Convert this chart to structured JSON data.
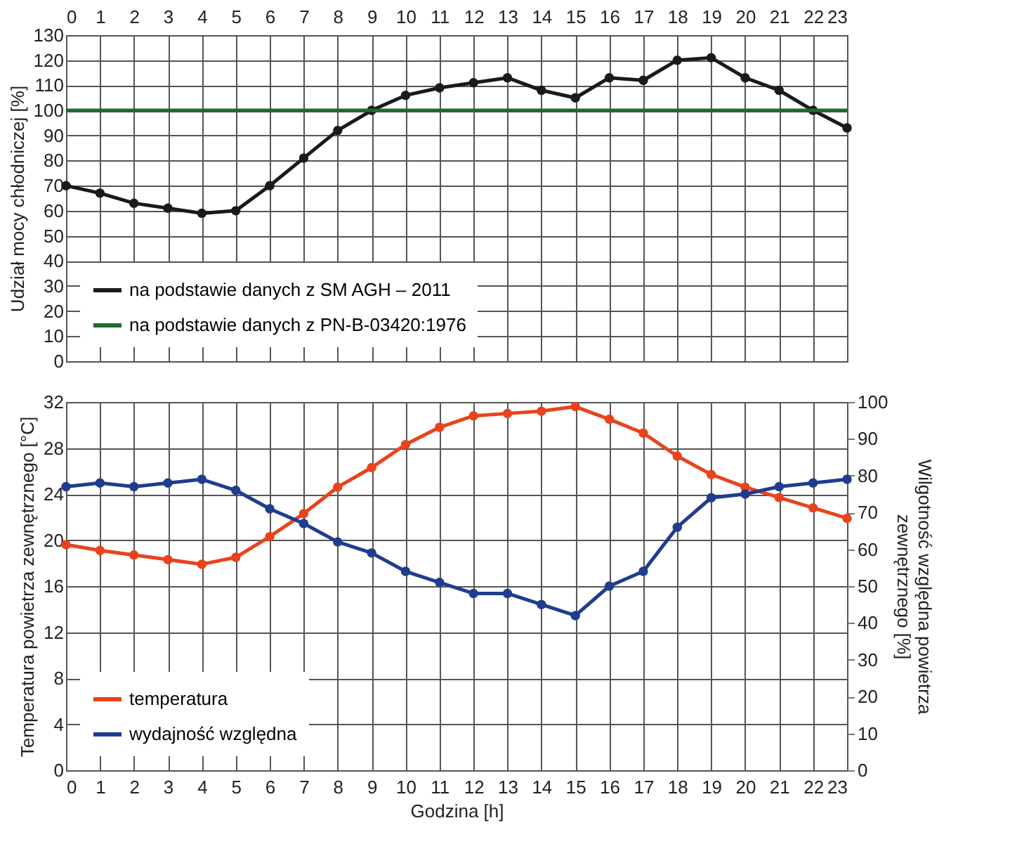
{
  "chart_data": [
    {
      "type": "line",
      "ylabel": "Udział mocy chłodniczej [%]",
      "xlim": [
        0,
        23
      ],
      "xticks": [
        0,
        1,
        2,
        3,
        4,
        5,
        6,
        7,
        8,
        9,
        10,
        11,
        12,
        13,
        14,
        15,
        16,
        17,
        18,
        19,
        20,
        21,
        22,
        23
      ],
      "ylim": [
        0,
        130
      ],
      "yticks": [
        0,
        10,
        20,
        30,
        40,
        50,
        60,
        70,
        80,
        90,
        100,
        110,
        120,
        130
      ],
      "grid": true,
      "legend": "bottom left",
      "marker": "circle",
      "line_style": "solid",
      "series": [
        {
          "name": "na podstawie danych z SM AGH – 2011",
          "color": "#1a1a1a",
          "x": [
            0,
            1,
            2,
            3,
            4,
            5,
            6,
            7,
            8,
            9,
            10,
            11,
            12,
            13,
            14,
            15,
            16,
            17,
            18,
            19,
            20,
            21,
            22,
            23
          ],
          "values": [
            70,
            67,
            63,
            61,
            59,
            60,
            70,
            81,
            92,
            100,
            106,
            109,
            111,
            113,
            108,
            105,
            113,
            112,
            120,
            121,
            113,
            108,
            100,
            93
          ]
        },
        {
          "name": "na podstawie danych z PN-B-03420:1976",
          "color": "#1e6b2e",
          "marker": "none",
          "x": [
            0,
            23
          ],
          "values": [
            100,
            100
          ]
        }
      ]
    },
    {
      "type": "line",
      "xlabel": "Godzina [h]",
      "ylabel": "Temperatura powietrza zewnętrznego [°C]",
      "y2label": "Wilgotność względna powietrza zewnętrznego [%]",
      "xlim": [
        0,
        23
      ],
      "xticks": [
        0,
        1,
        2,
        3,
        4,
        5,
        6,
        7,
        8,
        9,
        10,
        11,
        12,
        13,
        14,
        15,
        16,
        17,
        18,
        19,
        20,
        21,
        22,
        23
      ],
      "ylim": [
        0,
        32
      ],
      "yticks": [
        0,
        4,
        8,
        12,
        16,
        20,
        24,
        28,
        32
      ],
      "y2lim": [
        0,
        100
      ],
      "y2ticks": [
        0,
        10,
        20,
        30,
        40,
        50,
        60,
        70,
        80,
        90,
        100
      ],
      "grid": true,
      "legend": "bottom left",
      "marker": "circle",
      "line_style": "solid",
      "series": [
        {
          "name": "temperatura",
          "color": "#e8431c",
          "x": [
            0,
            1,
            2,
            3,
            4,
            5,
            6,
            7,
            8,
            9,
            10,
            11,
            12,
            13,
            14,
            15,
            16,
            17,
            18,
            19,
            20,
            21,
            22,
            23
          ],
          "values": [
            19.6,
            19.1,
            18.7,
            18.3,
            17.9,
            18.5,
            20.3,
            22.3,
            24.6,
            26.3,
            28.3,
            29.8,
            30.8,
            31.0,
            31.2,
            31.6,
            30.5,
            29.3,
            27.3,
            25.7,
            24.6,
            23.7,
            22.8,
            21.9
          ]
        },
        {
          "name": "wydajność względna",
          "color": "#1f3d8f",
          "axis": "y2",
          "x": [
            0,
            1,
            2,
            3,
            4,
            5,
            6,
            7,
            8,
            9,
            10,
            11,
            12,
            13,
            14,
            15,
            16,
            17,
            18,
            19,
            20,
            21,
            22,
            23
          ],
          "values": [
            77,
            78,
            77,
            78,
            79,
            76,
            71,
            67,
            62,
            59,
            54,
            51,
            48,
            48,
            45,
            42,
            50,
            54,
            66,
            74,
            75,
            77,
            78,
            79
          ]
        }
      ]
    }
  ]
}
